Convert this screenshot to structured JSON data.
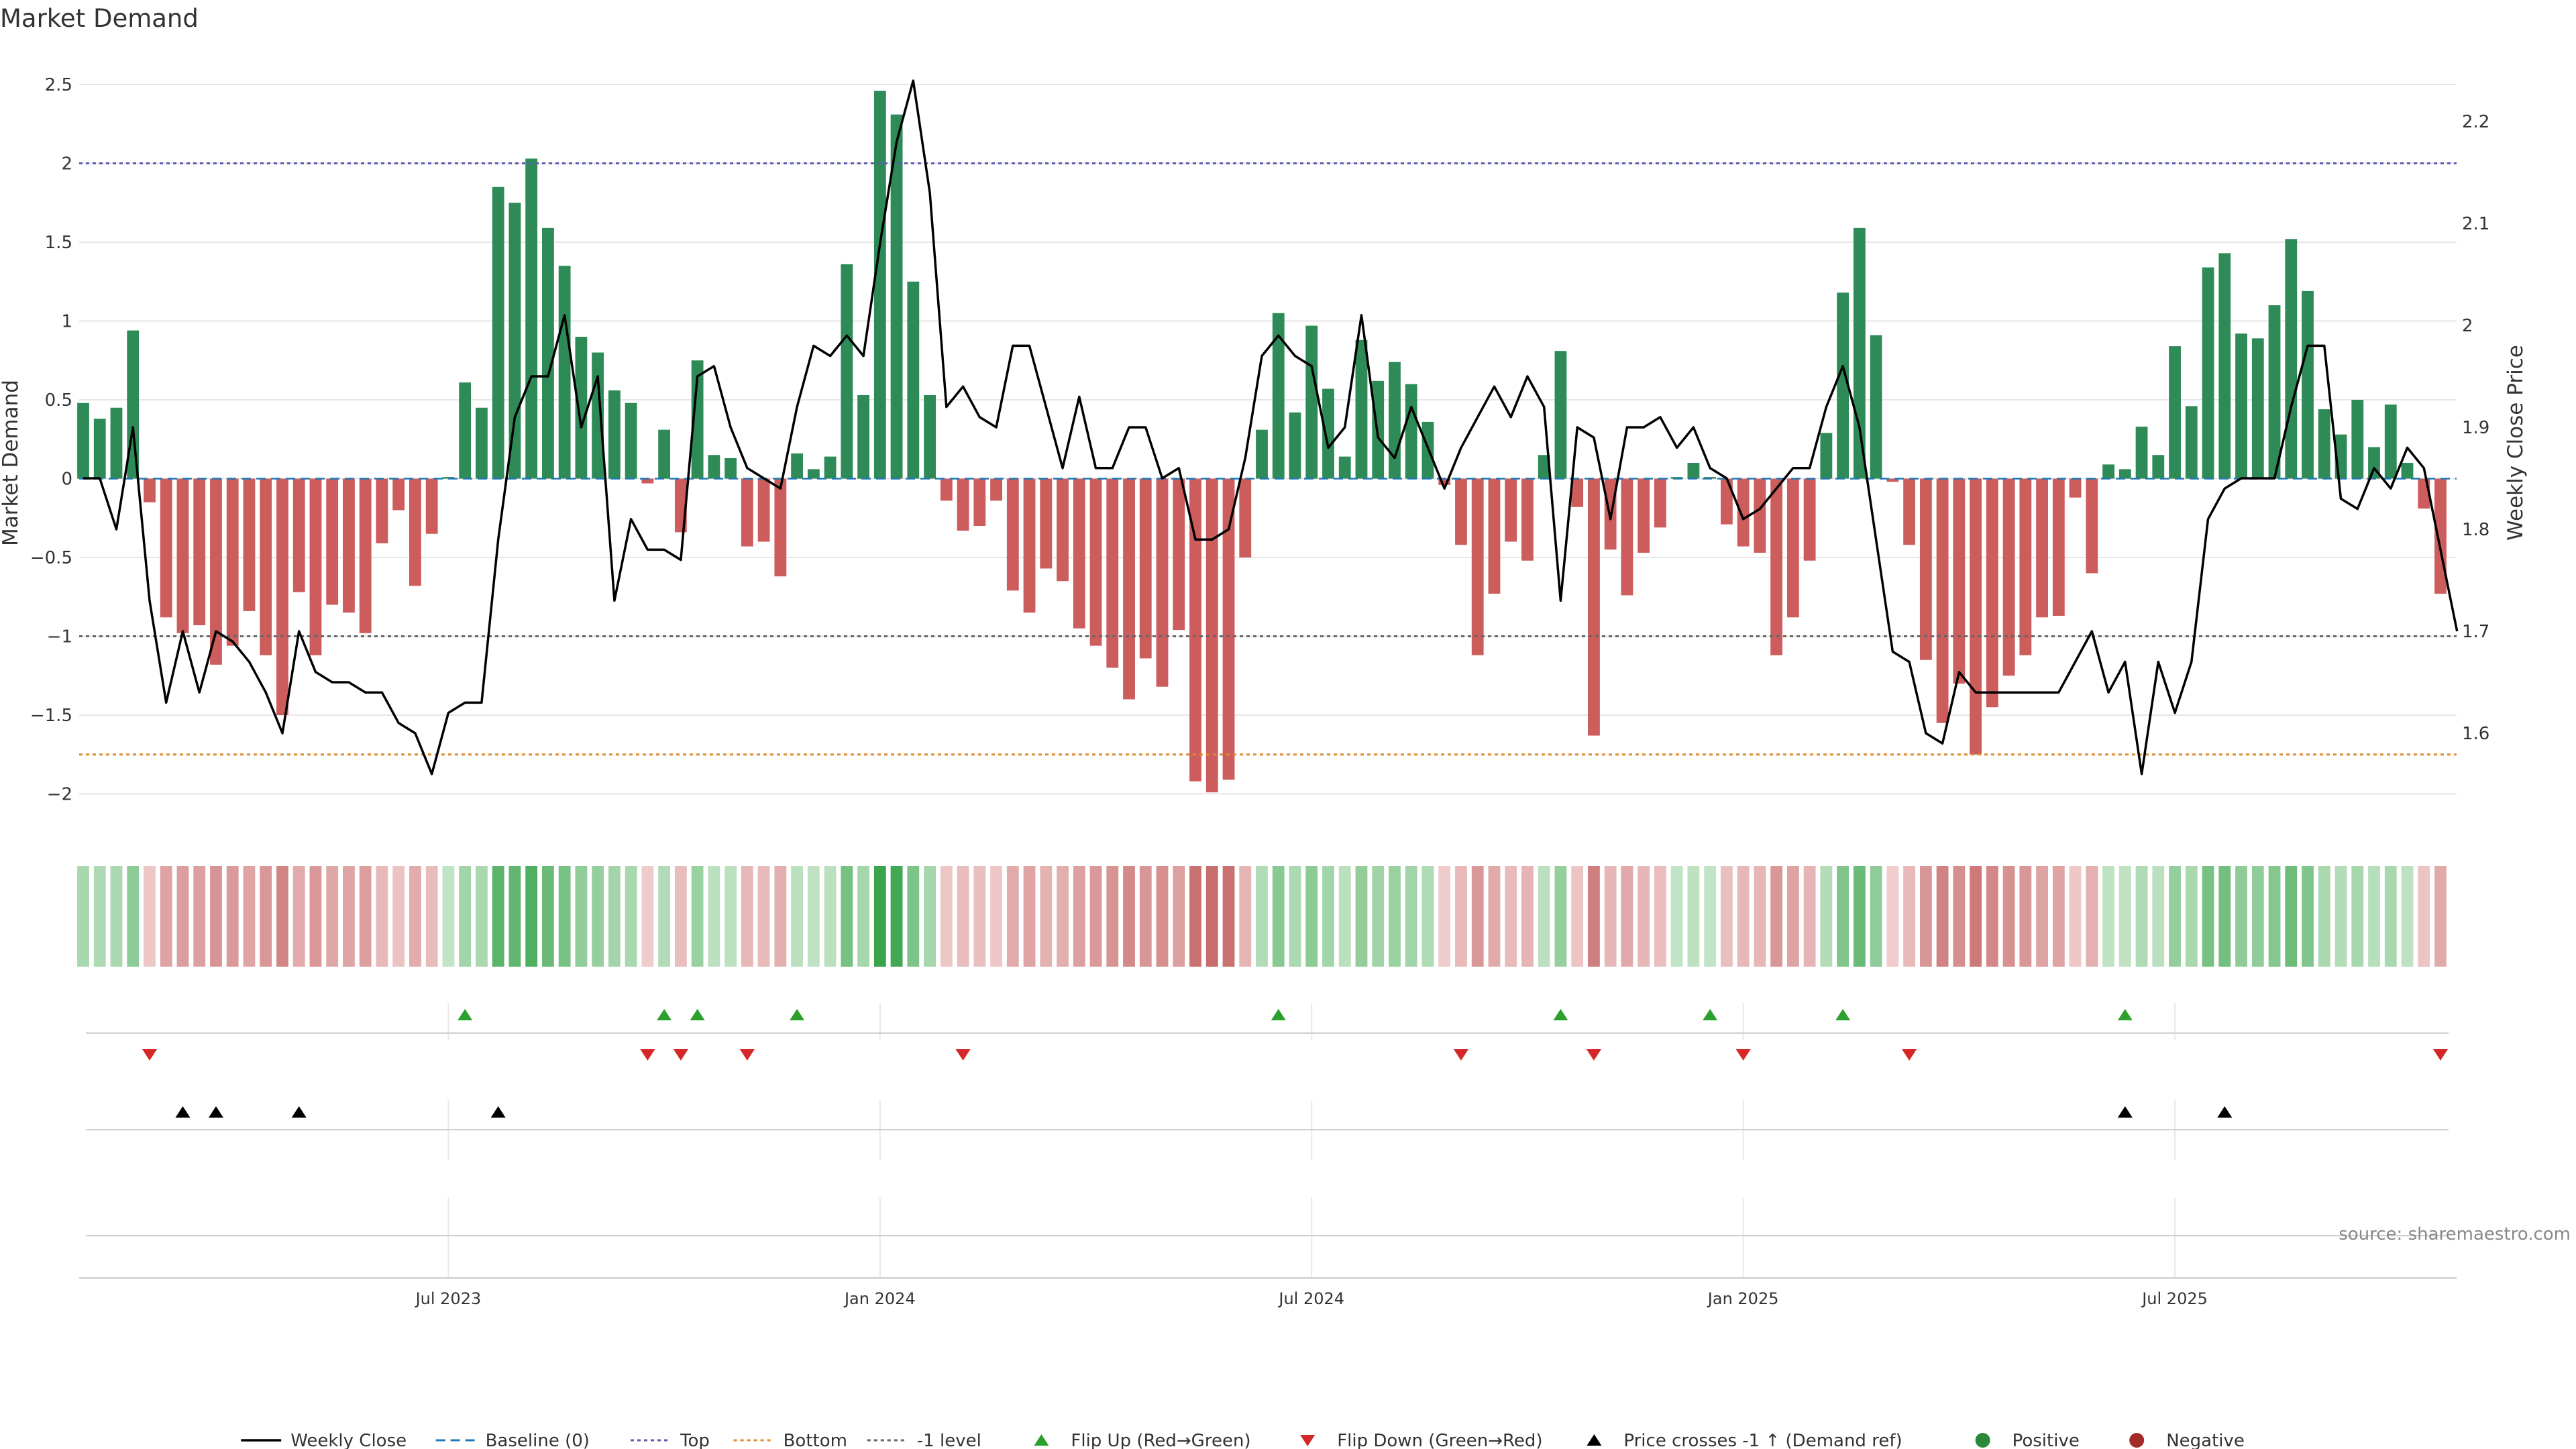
{
  "chart_data": {
    "type": "bar+line",
    "title": "Market Demand",
    "ylabel_left": "Market Demand",
    "ylabel_right": "Weekly Close Price",
    "ylim_left": [
      -2.25,
      2.6
    ],
    "ylim_right": [
      1.535,
      2.245
    ],
    "yticks_left": [
      {
        "v": 2.5,
        "label": "2.5"
      },
      {
        "v": 2,
        "label": "2"
      },
      {
        "v": 1.5,
        "label": "1.5"
      },
      {
        "v": 1,
        "label": "1"
      },
      {
        "v": 0.5,
        "label": "0.5"
      },
      {
        "v": 0,
        "label": "0"
      },
      {
        "v": -0.5,
        "label": "−0.5"
      },
      {
        "v": -1,
        "label": "−1"
      },
      {
        "v": -1.5,
        "label": "−1.5"
      },
      {
        "v": -2,
        "label": "−2"
      }
    ],
    "yticks_right": [
      {
        "v": 2.2,
        "label": "2.2"
      },
      {
        "v": 2.1,
        "label": "2.1"
      },
      {
        "v": 2.0,
        "label": "2"
      },
      {
        "v": 1.9,
        "label": "1.9"
      },
      {
        "v": 1.8,
        "label": "1.8"
      },
      {
        "v": 1.7,
        "label": "1.7"
      },
      {
        "v": 1.6,
        "label": "1.6"
      }
    ],
    "x_ticks": [
      {
        "index": 22,
        "label": "Jul 2023"
      },
      {
        "index": 48,
        "label": "Jan 2024"
      },
      {
        "index": 74,
        "label": "Jul 2024"
      },
      {
        "index": 100,
        "label": "Jan 2025"
      },
      {
        "index": 126,
        "label": "Jul 2025"
      }
    ],
    "reference_lines": [
      {
        "name": "Top",
        "value": 2,
        "color": "#5b5bb5"
      },
      {
        "name": "Bottom",
        "value": -1.75,
        "color": "#e08a2c"
      },
      {
        "name": "-1 level",
        "value": -1,
        "color": "#666666"
      },
      {
        "name": "Baseline (0)",
        "value": 0,
        "color": "#1f77b4"
      }
    ],
    "demand": [
      0.48,
      0.38,
      0.45,
      0.94,
      -0.15,
      -0.88,
      -0.98,
      -0.93,
      -1.18,
      -1.06,
      -0.84,
      -1.12,
      -1.5,
      -0.72,
      -1.12,
      -0.8,
      -0.85,
      -0.98,
      -0.41,
      -0.2,
      -0.68,
      -0.35,
      0.01,
      0.61,
      0.45,
      1.85,
      1.75,
      2.03,
      1.59,
      1.35,
      0.9,
      0.8,
      0.56,
      0.48,
      -0.03,
      0.31,
      -0.34,
      0.75,
      0.15,
      0.13,
      -0.43,
      -0.4,
      -0.62,
      0.16,
      0.06,
      0.14,
      1.36,
      0.53,
      2.46,
      2.31,
      1.25,
      0.53,
      -0.14,
      -0.33,
      -0.3,
      -0.14,
      -0.71,
      -0.85,
      -0.57,
      -0.65,
      -0.95,
      -1.06,
      -1.2,
      -1.4,
      -1.14,
      -1.32,
      -0.96,
      -1.92,
      -1.99,
      -1.91,
      -0.5,
      0.31,
      1.05,
      0.42,
      0.97,
      0.57,
      0.14,
      0.88,
      0.62,
      0.74,
      0.6,
      0.36,
      -0.04,
      -0.42,
      -1.12,
      -0.73,
      -0.4,
      -0.52,
      0.15,
      0.81,
      -0.18,
      -1.63,
      -0.45,
      -0.74,
      -0.47,
      -0.31,
      0.01,
      0.1,
      0.01,
      -0.29,
      -0.43,
      -0.47,
      -1.12,
      -0.88,
      -0.52,
      0.29,
      1.18,
      1.59,
      0.91,
      -0.02,
      -0.42,
      -1.15,
      -1.55,
      -1.3,
      -1.75,
      -1.45,
      -1.25,
      -1.12,
      -0.88,
      -0.87,
      -0.12,
      -0.6,
      0.09,
      0.06,
      0.33,
      0.15,
      0.84,
      0.46,
      1.34,
      1.43,
      0.92,
      0.89,
      1.1,
      1.52,
      1.19,
      0.44,
      0.28,
      0.5,
      0.2,
      0.47,
      0.1,
      -0.19,
      -0.73
    ],
    "weekly_close": [
      1.85,
      1.85,
      1.8,
      1.9,
      1.73,
      1.63,
      1.7,
      1.64,
      1.7,
      1.69,
      1.67,
      1.64,
      1.6,
      1.7,
      1.66,
      1.65,
      1.65,
      1.64,
      1.64,
      1.61,
      1.6,
      1.56,
      1.62,
      1.63,
      1.63,
      1.79,
      1.91,
      1.95,
      1.95,
      2.01,
      1.9,
      1.95,
      1.73,
      1.81,
      1.78,
      1.78,
      1.77,
      1.95,
      1.96,
      1.9,
      1.86,
      1.85,
      1.84,
      1.92,
      1.98,
      1.97,
      1.99,
      1.97,
      2.08,
      2.18,
      2.24,
      2.13,
      1.92,
      1.94,
      1.91,
      1.9,
      1.98,
      1.98,
      1.92,
      1.86,
      1.93,
      1.86,
      1.86,
      1.9,
      1.9,
      1.85,
      1.86,
      1.79,
      1.79,
      1.8,
      1.87,
      1.97,
      1.99,
      1.97,
      1.96,
      1.88,
      1.9,
      2.01,
      1.89,
      1.87,
      1.92,
      1.88,
      1.84,
      1.88,
      1.91,
      1.94,
      1.91,
      1.95,
      1.92,
      1.73,
      1.9,
      1.89,
      1.81,
      1.9,
      1.9,
      1.91,
      1.88,
      1.9,
      1.86,
      1.85,
      1.81,
      1.82,
      1.84,
      1.86,
      1.86,
      1.92,
      1.96,
      1.9,
      1.79,
      1.68,
      1.67,
      1.6,
      1.59,
      1.66,
      1.64,
      1.64,
      1.64,
      1.64,
      1.64,
      1.64,
      1.67,
      1.7,
      1.64,
      1.67,
      1.56,
      1.67,
      1.62,
      1.67,
      1.81,
      1.84,
      1.85,
      1.85,
      1.85,
      1.92,
      1.98,
      1.98,
      1.83,
      1.82,
      1.86,
      1.84,
      1.88,
      1.86,
      1.78,
      1.7
    ],
    "flip_up": [
      23,
      35,
      37,
      43,
      72,
      89,
      98,
      106,
      123
    ],
    "flip_down": [
      4,
      34,
      36,
      40,
      53,
      83,
      91,
      100,
      110,
      142
    ],
    "price_crosses": [
      6,
      8,
      13,
      25,
      123,
      129
    ],
    "colors": {
      "positive": "#2e8b57",
      "negative": "#cd5c5c",
      "line": "#000000",
      "flip_up": "#2ca02c",
      "flip_down": "#d62728",
      "crosses": "#000000",
      "legend_positive": "#2a8a3a",
      "legend_negative": "#a52a2a"
    },
    "legend": [
      {
        "label": "Weekly Close",
        "kind": "line",
        "color": "#000000"
      },
      {
        "label": "Baseline (0)",
        "kind": "dash",
        "color": "#1f77b4"
      },
      {
        "label": "Top",
        "kind": "dot",
        "color": "#5b5bb5"
      },
      {
        "label": "Bottom",
        "kind": "dot",
        "color": "#e08a2c"
      },
      {
        "label": "-1 level",
        "kind": "dot",
        "color": "#666666"
      },
      {
        "label": "Flip Up (Red→Green)",
        "kind": "tri-up",
        "color": "#2ca02c"
      },
      {
        "label": "Flip Down (Green→Red)",
        "kind": "tri-down",
        "color": "#d62728"
      },
      {
        "label": "Price crosses -1 ↑ (Demand ref)",
        "kind": "tri-up",
        "color": "#000000"
      },
      {
        "label": "Positive",
        "kind": "circle",
        "color": "#2a8a3a"
      },
      {
        "label": "Negative",
        "kind": "circle",
        "color": "#a52a2a"
      }
    ],
    "source": "source: sharemaestro.com"
  }
}
